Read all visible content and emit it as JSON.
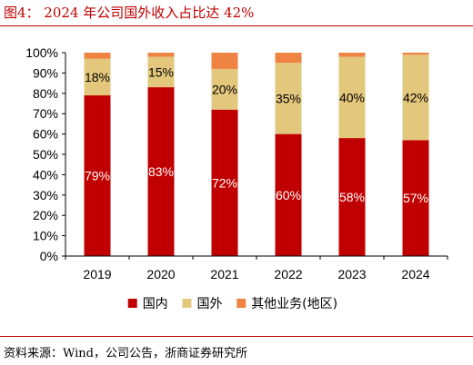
{
  "figure": {
    "title": "图4： 2024 年公司国外收入占比达 42%",
    "source": "资料来源：Wind，公司公告，浙商证券研究所"
  },
  "chart_data": {
    "type": "bar",
    "stacked": true,
    "categories": [
      "2019",
      "2020",
      "2021",
      "2022",
      "2023",
      "2024"
    ],
    "series": [
      {
        "name": "国内",
        "values": [
          79,
          83,
          72,
          60,
          58,
          57
        ],
        "labels": [
          "79%",
          "83%",
          "72%",
          "60%",
          "58%",
          "57%"
        ],
        "color": "#c00000"
      },
      {
        "name": "国外",
        "values": [
          18,
          15,
          20,
          35,
          40,
          42
        ],
        "labels": [
          "18%",
          "15%",
          "20%",
          "35%",
          "40%",
          "42%"
        ],
        "color": "#e3c77c"
      },
      {
        "name": "其他业务(地区)",
        "values": [
          3,
          2,
          8,
          5,
          2,
          1
        ],
        "color": "#ee8342"
      }
    ],
    "ylim": [
      0,
      100
    ],
    "yticks": [
      "0%",
      "10%",
      "20%",
      "30%",
      "40%",
      "50%",
      "60%",
      "70%",
      "80%",
      "90%",
      "100%"
    ],
    "xlabel": "",
    "ylabel": "",
    "grid": false,
    "legend_position": "bottom"
  }
}
